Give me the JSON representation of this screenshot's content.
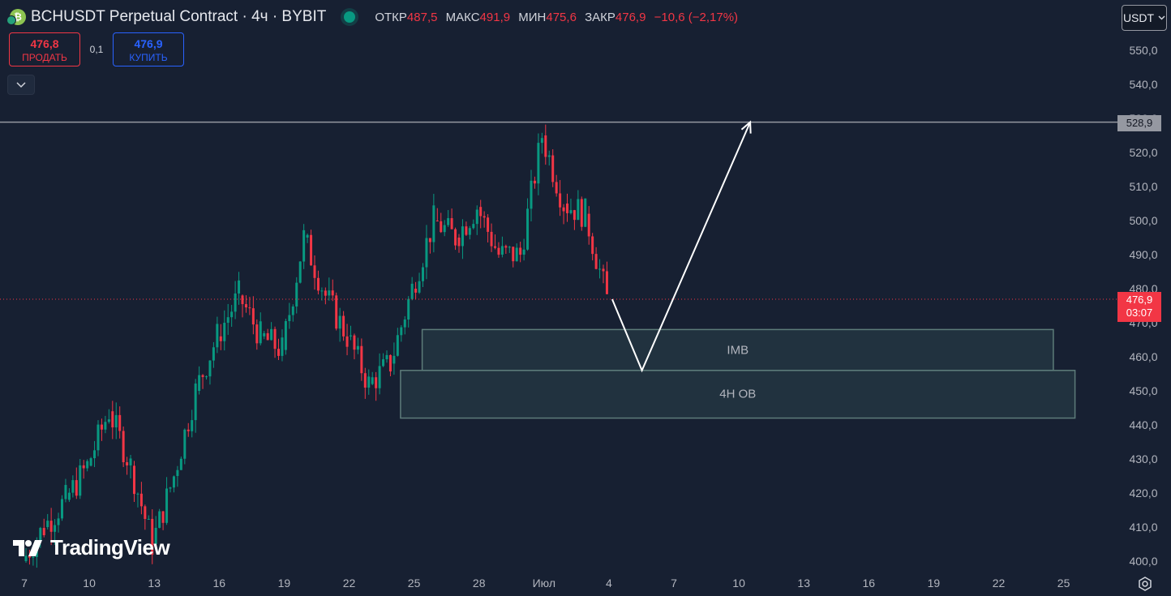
{
  "header": {
    "title": "BCHUSDT Perpetual Contract · 4ч · BYBIT",
    "symbol_icon": "bitcoin-cash-icon",
    "ohlc": {
      "open_label": "ОТКР",
      "open": "487,5",
      "high_label": "МАКС",
      "high": "491,9",
      "low_label": "МИН",
      "low": "475,6",
      "close_label": "ЗАКР",
      "close": "476,9",
      "change": "−10,6 (−2,17%)"
    },
    "currency": "USDT"
  },
  "trade": {
    "sell_price": "476,8",
    "sell_label": "ПРОДАТЬ",
    "spread": "0,1",
    "buy_price": "476,9",
    "buy_label": "КУПИТЬ"
  },
  "price_tags": {
    "level": "528,9",
    "last_price": "476,9",
    "countdown": "03:07"
  },
  "logo": {
    "text": "TradingView"
  },
  "colors": {
    "background": "#172032",
    "up": "#089981",
    "down": "#f23645",
    "level_line": "#9598a1",
    "zones": "#2f4a4f"
  },
  "chart_data": {
    "type": "candlestick",
    "timeframe": "4h",
    "y_axis": {
      "ticks": [
        400,
        410,
        420,
        430,
        440,
        450,
        460,
        470,
        480,
        490,
        500,
        510,
        520,
        530,
        540,
        550
      ],
      "tick_labels": [
        "400,0",
        "410,0",
        "420,0",
        "430,0",
        "440,0",
        "450,0",
        "460,0",
        "470,0",
        "480,0",
        "490,0",
        "500,0",
        "510,0",
        "520,0",
        "530,0",
        "540,0",
        "550,0"
      ],
      "range": [
        398,
        556
      ]
    },
    "x_axis": {
      "tick_labels": [
        "7",
        "10",
        "13",
        "16",
        "19",
        "22",
        "25",
        "28",
        "Июл",
        "4",
        "7",
        "10",
        "13",
        "16",
        "19",
        "22",
        "25"
      ],
      "range_days_from_jun7": [
        -0.2,
        16.6
      ]
    },
    "price_series_close_approx": [
      {
        "date": "2024-06-07",
        "close": 400
      },
      {
        "date": "2024-06-08",
        "close": 410
      },
      {
        "date": "2024-06-09",
        "close": 418
      },
      {
        "date": "2024-06-10",
        "close": 428
      },
      {
        "date": "2024-06-11",
        "close": 444
      },
      {
        "date": "2024-06-12",
        "close": 428
      },
      {
        "date": "2024-06-13",
        "close": 405
      },
      {
        "date": "2024-06-14",
        "close": 425
      },
      {
        "date": "2024-06-15",
        "close": 450
      },
      {
        "date": "2024-06-16",
        "close": 466
      },
      {
        "date": "2024-06-17",
        "close": 478
      },
      {
        "date": "2024-06-18",
        "close": 466
      },
      {
        "date": "2024-06-19",
        "close": 462
      },
      {
        "date": "2024-06-20",
        "close": 495
      },
      {
        "date": "2024-06-21",
        "close": 478
      },
      {
        "date": "2024-06-22",
        "close": 466
      },
      {
        "date": "2024-06-23",
        "close": 452
      },
      {
        "date": "2024-06-24",
        "close": 458
      },
      {
        "date": "2024-06-25",
        "close": 480
      },
      {
        "date": "2024-06-26",
        "close": 500
      },
      {
        "date": "2024-06-27",
        "close": 495
      },
      {
        "date": "2024-06-28",
        "close": 504
      },
      {
        "date": "2024-06-29",
        "close": 490
      },
      {
        "date": "2024-06-30",
        "close": 490
      },
      {
        "date": "2024-07-01",
        "close": 525
      },
      {
        "date": "2024-07-02",
        "close": 505
      },
      {
        "date": "2024-07-03",
        "close": 502
      },
      {
        "date": "2024-07-04",
        "close": 476.9
      }
    ],
    "horizontal_level": 528.9,
    "last_price": 476.9,
    "zones": [
      {
        "label": "IMB",
        "top": 468,
        "bottom": 456,
        "start": "2024-06-25",
        "end": "2024-07-24"
      },
      {
        "label": "4H OB",
        "top": 456,
        "bottom": 442,
        "start": "2024-06-24",
        "end": "2024-07-25"
      }
    ],
    "projection_path": [
      {
        "date": "2024-07-04",
        "price": 476.9
      },
      {
        "date": "2024-07-05",
        "price": 456
      },
      {
        "date": "2024-07-10",
        "price": 528.9
      }
    ]
  }
}
